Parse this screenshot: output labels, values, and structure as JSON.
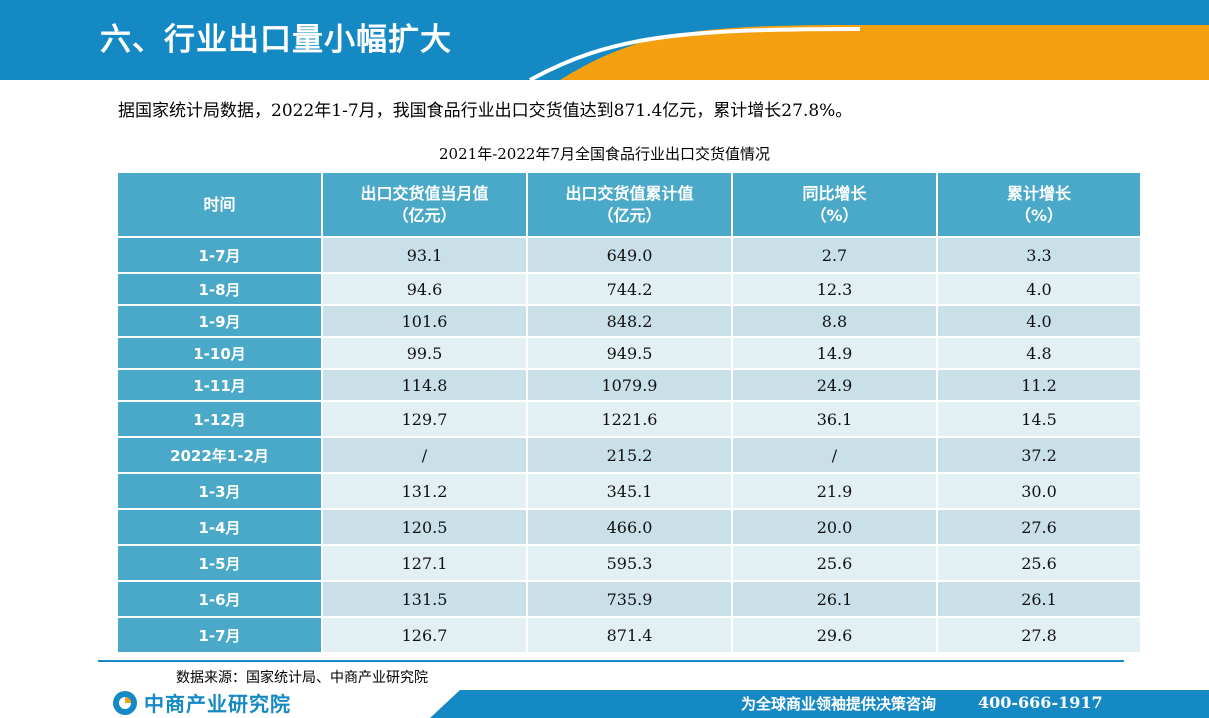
{
  "header": {
    "title": "六、行业出口量小幅扩大"
  },
  "intro": "据国家统计局数据，2022年1-7月，我国食品行业出口交货值达到871.4亿元，累计增长27.8%。",
  "table": {
    "caption": "2021年-2022年7月全国食品行业出口交货值情况",
    "headers": [
      {
        "line1": "时间",
        "line2": ""
      },
      {
        "line1": "出口交货值当月值",
        "line2": "（亿元）"
      },
      {
        "line1": "出口交货值累计值",
        "line2": "（亿元）"
      },
      {
        "line1": "同比增长",
        "line2": "（%）"
      },
      {
        "line1": "累计增长",
        "line2": "（%）"
      }
    ],
    "rows": [
      [
        "1-7月",
        "93.1",
        "649.0",
        "2.7",
        "3.3"
      ],
      [
        "1-8月",
        "94.6",
        "744.2",
        "12.3",
        "4.0"
      ],
      [
        "1-9月",
        "101.6",
        "848.2",
        "8.8",
        "4.0"
      ],
      [
        "1-10月",
        "99.5",
        "949.5",
        "14.9",
        "4.8"
      ],
      [
        "1-11月",
        "114.8",
        "1079.9",
        "24.9",
        "11.2"
      ],
      [
        "1-12月",
        "129.7",
        "1221.6",
        "36.1",
        "14.5"
      ],
      [
        "2022年1-2月",
        "/",
        "215.2",
        "/",
        "37.2"
      ],
      [
        "1-3月",
        "131.2",
        "345.1",
        "21.9",
        "30.0"
      ],
      [
        "1-4月",
        "120.5",
        "466.0",
        "20.0",
        "27.6"
      ],
      [
        "1-5月",
        "127.1",
        "595.3",
        "25.6",
        "25.6"
      ],
      [
        "1-6月",
        "131.5",
        "735.9",
        "26.1",
        "26.1"
      ],
      [
        "1-7月",
        "126.7",
        "871.4",
        "29.6",
        "27.8"
      ]
    ]
  },
  "source": "数据来源：国家统计局、中商产业研究院",
  "footer": {
    "logo_text": "中商产业研究院",
    "slogan": "为全球商业领袖提供决策咨询",
    "phone": "400-666-1917"
  },
  "colors": {
    "brand_blue": "#1589c3",
    "accent_orange": "#f5a00f",
    "header_cell": "#4aa9c8"
  }
}
